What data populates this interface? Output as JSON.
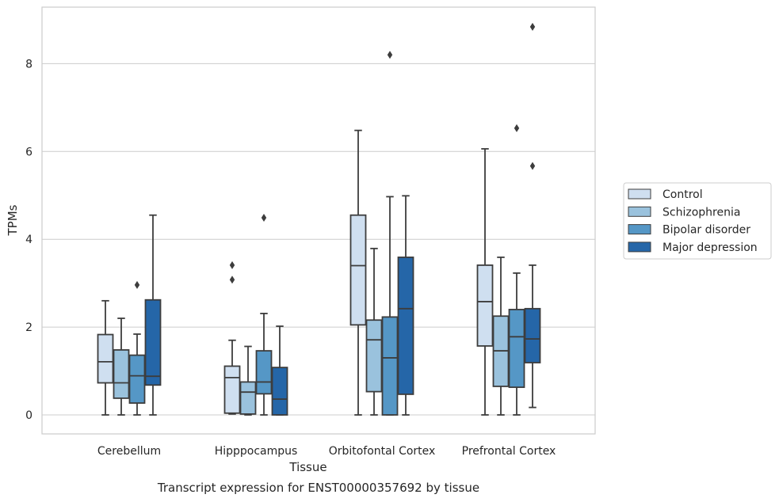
{
  "chart_data": {
    "type": "box",
    "caption": "Transcript expression for ENST00000357692 by tissue",
    "xlabel": "Tissue",
    "ylabel": "TPMs",
    "ylim": [
      -0.4,
      9.3
    ],
    "yticks": [
      0,
      2,
      4,
      6,
      8
    ],
    "grid": true,
    "legend_position": "right",
    "categories": [
      "Cerebellum",
      "Hipppocampus",
      "Orbitofontal Cortex",
      "Prefrontal Cortex"
    ],
    "series": [
      {
        "name": "Control",
        "color": "#cfdff0",
        "boxes": [
          {
            "whislo": 0.0,
            "q1": 0.73,
            "med": 1.21,
            "q3": 1.83,
            "whishi": 2.6,
            "fliers": []
          },
          {
            "whislo": 0.02,
            "q1": 0.04,
            "med": 0.85,
            "q3": 1.11,
            "whishi": 1.7,
            "fliers": [
              3.08,
              3.41
            ]
          },
          {
            "whislo": 0.0,
            "q1": 2.05,
            "med": 3.4,
            "q3": 4.55,
            "whishi": 6.48,
            "fliers": []
          },
          {
            "whislo": 0.0,
            "q1": 1.57,
            "med": 2.58,
            "q3": 3.41,
            "whishi": 6.06,
            "fliers": []
          }
        ]
      },
      {
        "name": "Schizophrenia",
        "color": "#9ac2dd",
        "boxes": [
          {
            "whislo": 0.0,
            "q1": 0.38,
            "med": 0.73,
            "q3": 1.48,
            "whishi": 2.2,
            "fliers": []
          },
          {
            "whislo": 0.0,
            "q1": 0.02,
            "med": 0.52,
            "q3": 0.75,
            "whishi": 1.56,
            "fliers": []
          },
          {
            "whislo": 0.0,
            "q1": 0.53,
            "med": 1.71,
            "q3": 2.16,
            "whishi": 3.79,
            "fliers": []
          },
          {
            "whislo": 0.0,
            "q1": 0.65,
            "med": 1.46,
            "q3": 2.25,
            "whishi": 3.59,
            "fliers": []
          }
        ]
      },
      {
        "name": "Bipolar disorder",
        "color": "#5597c6",
        "boxes": [
          {
            "whislo": 0.0,
            "q1": 0.27,
            "med": 0.89,
            "q3": 1.36,
            "whishi": 1.84,
            "fliers": [
              2.96
            ]
          },
          {
            "whislo": 0.0,
            "q1": 0.48,
            "med": 0.75,
            "q3": 1.46,
            "whishi": 2.31,
            "fliers": [
              4.49
            ]
          },
          {
            "whislo": 0.0,
            "q1": 0.0,
            "med": 1.3,
            "q3": 2.23,
            "whishi": 4.97,
            "fliers": [
              8.2
            ]
          },
          {
            "whislo": 0.0,
            "q1": 0.63,
            "med": 1.78,
            "q3": 2.4,
            "whishi": 3.23,
            "fliers": [
              6.53
            ]
          }
        ]
      },
      {
        "name": "Major depression",
        "color": "#2566a8",
        "boxes": [
          {
            "whislo": 0.0,
            "q1": 0.68,
            "med": 0.88,
            "q3": 2.62,
            "whishi": 4.55,
            "fliers": []
          },
          {
            "whislo": 0.0,
            "q1": 0.0,
            "med": 0.36,
            "q3": 1.08,
            "whishi": 2.02,
            "fliers": []
          },
          {
            "whislo": 0.0,
            "q1": 0.47,
            "med": 2.42,
            "q3": 3.59,
            "whishi": 4.99,
            "fliers": []
          },
          {
            "whislo": 0.17,
            "q1": 1.19,
            "med": 1.73,
            "q3": 2.42,
            "whishi": 3.41,
            "fliers": [
              5.67,
              8.84
            ]
          }
        ]
      }
    ]
  }
}
